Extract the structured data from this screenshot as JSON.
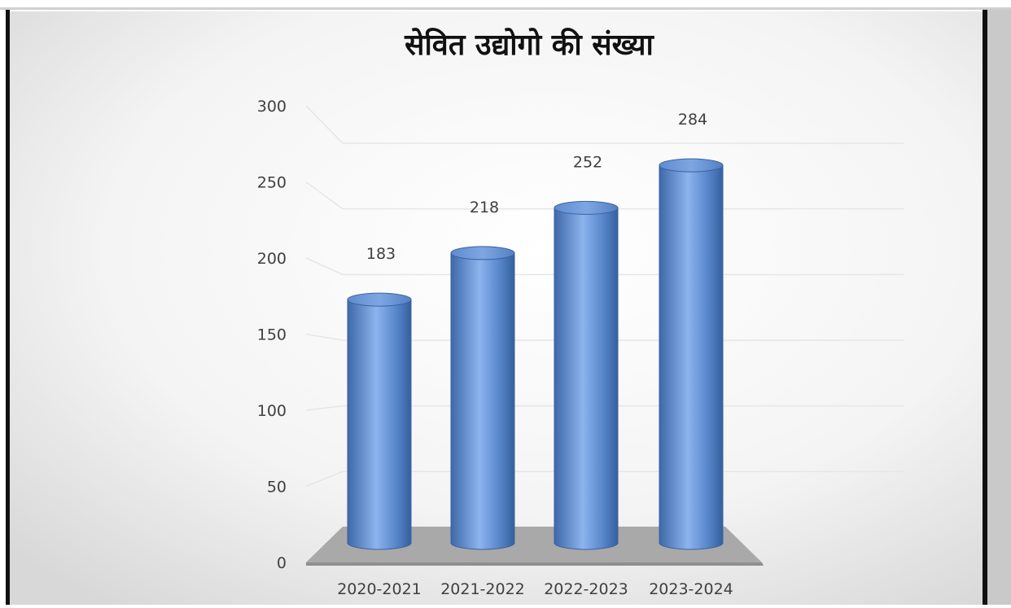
{
  "chart_data": {
    "type": "bar",
    "title": "सेवित उद्योगो की संख्या",
    "categories": [
      "2020-2021",
      "2021-2022",
      "2022-2023",
      "2023-2024"
    ],
    "values": [
      183,
      218,
      252,
      284
    ],
    "ylim": [
      0,
      300
    ],
    "yticks": [
      0,
      50,
      100,
      150,
      200,
      250,
      300
    ],
    "xlabel": "",
    "ylabel": "",
    "grid": true,
    "bar_color": "#4f81bd"
  }
}
